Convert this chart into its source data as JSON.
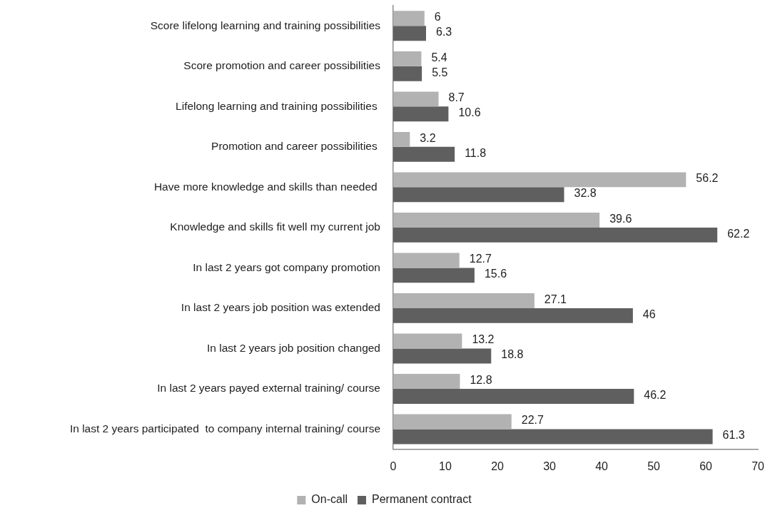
{
  "chart_data": {
    "type": "bar",
    "orientation": "horizontal",
    "categories": [
      "Score lifelong learning and training possibilities",
      "Score promotion and career possibilities",
      "Lifelong learning and training possibilities ",
      "Promotion and career possibilities ",
      "Have more knowledge and skills than needed ",
      "Knowledge and skills fit well my current job",
      "In last 2 years got company promotion",
      "In last 2 years job position was extended",
      "In last 2 years job position changed",
      "In last 2 years payed external training/ course",
      "In last 2 years participated  to company internal training/ course"
    ],
    "series": [
      {
        "name": "On-call",
        "color": "#b2b2b2",
        "values": [
          6,
          5.4,
          8.7,
          3.2,
          56.2,
          39.6,
          12.7,
          27.1,
          13.2,
          12.8,
          22.7
        ]
      },
      {
        "name": "Permanent contract",
        "color": "#5f5f5f",
        "values": [
          6.3,
          5.5,
          10.6,
          11.8,
          32.8,
          62.2,
          15.6,
          46,
          18.8,
          46.2,
          61.3
        ]
      }
    ],
    "xlim": [
      0,
      70
    ],
    "xticks": [
      0,
      10,
      20,
      30,
      40,
      50,
      60,
      70
    ],
    "data_labels": true,
    "legend": "bottom"
  }
}
